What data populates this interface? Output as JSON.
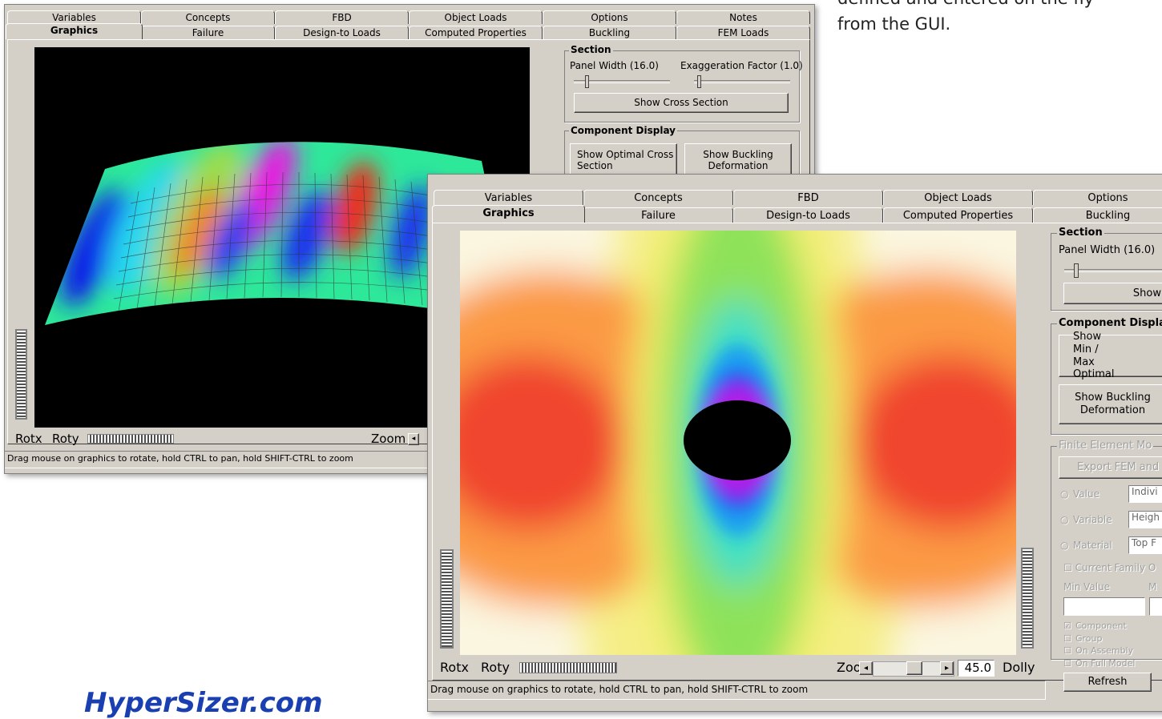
{
  "caption": {
    "line1": "defined and entered on the fly",
    "line2": "from the GUI."
  },
  "logo": "HyperSizer.com",
  "back_window": {
    "tabs_row1": [
      "Variables",
      "Concepts",
      "FBD",
      "Object Loads",
      "Options",
      "Notes"
    ],
    "tabs_row2": [
      "Graphics",
      "Failure",
      "Design-to Loads",
      "Computed Properties",
      "Buckling",
      "FEM Loads"
    ],
    "section": {
      "title": "Section",
      "panel_width": "Panel Width (16.0)",
      "exaggeration_factor": "Exaggeration Factor (1.0)",
      "button": "Show Cross Section"
    },
    "component_display": {
      "title": "Component Display",
      "buttons": [
        "Show Optimal Cross Section",
        "Show Buckling Deformation"
      ]
    },
    "controls": {
      "rotx": "Rotx",
      "roty": "Roty",
      "zoom": "Zoom"
    },
    "status": "Drag mouse on graphics to rotate, hold CTRL to pan, hold SHIFT-CTRL to zoom"
  },
  "front_window": {
    "tabs_row1": [
      "Variables",
      "Concepts",
      "FBD",
      "Object Loads",
      "Options"
    ],
    "tabs_row2": [
      "Graphics",
      "Failure",
      "Design-to Loads",
      "Computed Properties",
      "Buckling"
    ],
    "section": {
      "title": "Section",
      "panel_width": "Panel Width (16.0)",
      "button": "Show"
    },
    "component_display": {
      "title": "Component Displa",
      "buttons": [
        "Show Min / Max Optimal",
        "Show Buckling Deformation"
      ]
    },
    "fem": {
      "title": "Finite Element Mo",
      "export": "Export FEM and",
      "radios": [
        {
          "label": "Value",
          "field": "Indivi"
        },
        {
          "label": "Variable",
          "field": "Heigh"
        },
        {
          "label": "Material",
          "field": "Top F"
        }
      ],
      "current_family": "Current Family O",
      "min_value": "Min Value",
      "max_value": "M",
      "checkboxes": [
        "Component",
        "Group",
        "On Assembly",
        "On Full Model"
      ],
      "refresh": "Refresh"
    },
    "controls": {
      "rotx": "Rotx",
      "roty": "Roty",
      "zoom": "Zoom",
      "zoom_value": "45.0",
      "dolly": "Dolly"
    },
    "status": "Drag mouse on graphics to rotate, hold CTRL to pan, hold SHIFT-CTRL to zoom"
  }
}
